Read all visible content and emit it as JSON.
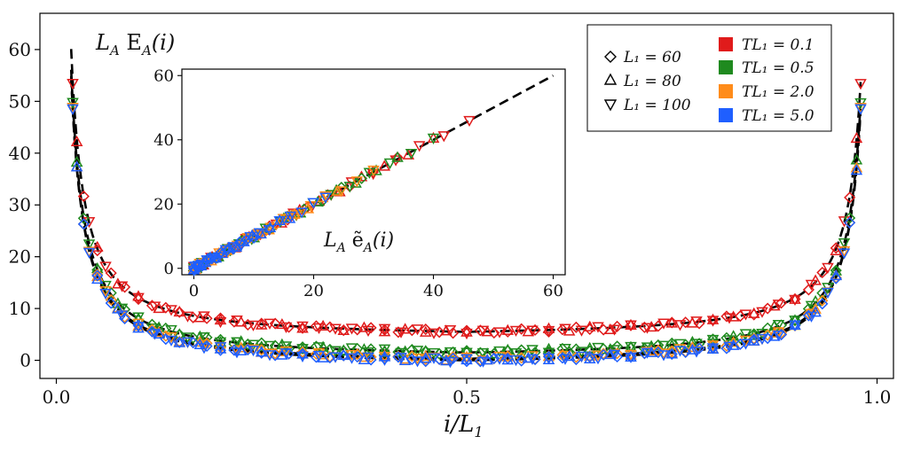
{
  "chart_data": [
    {
      "type": "scatter",
      "panel": "main",
      "title": "",
      "ylabel_in_plot": "L_A E_A(i)",
      "xlabel": "i/L_1",
      "xlim": [
        -0.02,
        1.02
      ],
      "ylim": [
        -3.5,
        67
      ],
      "xticks": [
        0.0,
        0.5,
        1.0
      ],
      "xtick_labels": [
        "0.0",
        "0.5",
        "1.0"
      ],
      "yticks": [
        0,
        10,
        20,
        30,
        40,
        50,
        60
      ],
      "ytick_labels": [
        "0",
        "10",
        "20",
        "30",
        "40",
        "50",
        "60"
      ],
      "fit_curves": [
        {
          "TL1": "0.1",
          "baseline": 5.5
        },
        {
          "TL1": "0.5",
          "baseline": 1.5
        },
        {
          "TL1": "2.0",
          "baseline": 0.3
        },
        {
          "TL1": "5.0",
          "baseline": 0.0
        }
      ],
      "series_colors": {
        "0.1": "#e01b1b",
        "0.5": "#1f8a1f",
        "2.0": "#ff8c1a",
        "5.0": "#1f5fff"
      },
      "markers": {
        "60": "diamond",
        "80": "triangle-up",
        "100": "triangle-down"
      }
    },
    {
      "type": "scatter",
      "panel": "inset",
      "xlabel": "L_A ẽ_A(i)",
      "xlim": [
        -2,
        62
      ],
      "ylim": [
        -2,
        62
      ],
      "xticks": [
        0,
        20,
        40,
        60
      ],
      "xtick_labels": [
        "0",
        "20",
        "40",
        "60"
      ],
      "yticks": [
        0,
        20,
        40,
        60
      ],
      "ytick_labels": [
        "0",
        "20",
        "40",
        "60"
      ],
      "reference_line": {
        "slope": 1,
        "from": 0,
        "to": 60
      }
    }
  ],
  "legend": {
    "sizes": [
      {
        "marker": "diamond",
        "label": "L₁ = 60"
      },
      {
        "marker": "triangle-up",
        "label": "L₁ = 80"
      },
      {
        "marker": "triangle-down",
        "label": "L₁ = 100"
      }
    ],
    "temperatures": [
      {
        "color": "#e01b1b",
        "label": "TL₁ = 0.1"
      },
      {
        "color": "#1f8a1f",
        "label": "TL₁ = 0.5"
      },
      {
        "color": "#ff8c1a",
        "label": "TL₁ = 2.0"
      },
      {
        "color": "#1f5fff",
        "label": "TL₁ = 5.0"
      }
    ]
  },
  "labels": {
    "main_y": "L",
    "main_y_sub": "A",
    "main_y_rest": " E",
    "main_y_sub2": "A",
    "main_y_arg": "(i)",
    "main_x": "i/L",
    "main_x_sub": "1",
    "inset_x": "L",
    "inset_x_sub": "A",
    "inset_x_rest": " ẽ",
    "inset_x_sub2": "A",
    "inset_x_arg": "(i)"
  }
}
